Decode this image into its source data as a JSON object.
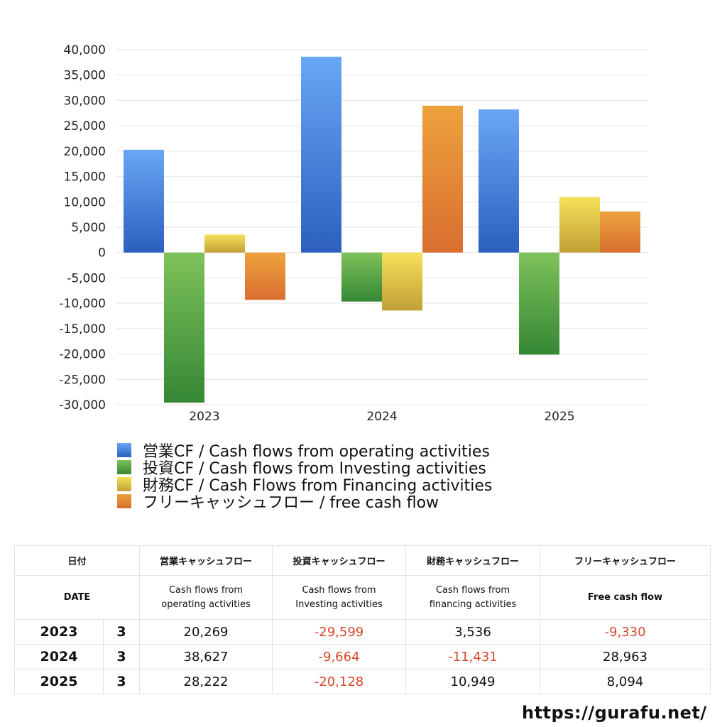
{
  "chart_data": {
    "type": "bar",
    "categories": [
      "2023",
      "2024",
      "2025"
    ],
    "series": [
      {
        "name": "営業CF / Cash flows from operating activities",
        "values": [
          20269,
          38627,
          28222
        ]
      },
      {
        "name": "投資CF / Cash flows from Investing activities",
        "values": [
          -29599,
          -9664,
          -20128
        ]
      },
      {
        "name": "財務CF / Cash Flows from Financing activities",
        "values": [
          3536,
          -11431,
          10949
        ]
      },
      {
        "name": "フリーキャッシュフロー / free cash flow",
        "values": [
          -9330,
          28963,
          8094
        ]
      }
    ],
    "ylim": [
      -30000,
      40000
    ],
    "yticks": [
      "40,000",
      "35,000",
      "30,000",
      "25,000",
      "20,000",
      "15,000",
      "10,000",
      "5,000",
      "0",
      "-5,000",
      "-10,000",
      "-15,000",
      "-20,000",
      "-25,000",
      "-30,000"
    ],
    "grid": true,
    "legend": "bottom-left",
    "colors": [
      {
        "top": "#69a7f5",
        "bottom": "#2c5fbf"
      },
      {
        "top": "#7ec25a",
        "bottom": "#358735"
      },
      {
        "top": "#f5e05a",
        "bottom": "#c2a035"
      },
      {
        "top": "#eda23d",
        "bottom": "#d96e30"
      }
    ]
  },
  "table": {
    "header_jp": {
      "date": "日付",
      "operating": "営業キャッシュフロー",
      "investing": "投資キャッシュフロー",
      "financing": "財務キャッシュフロー",
      "free": "フリーキャッシュフロー"
    },
    "header_en": {
      "date": "DATE",
      "operating_1": "Cash flows from",
      "operating_2": "operating activities",
      "investing_1": "Cash flows from",
      "investing_2": "Investing activities",
      "financing_1": "Cash flows from",
      "financing_2": "financing activities",
      "free": "Free cash flow"
    },
    "rows": [
      {
        "year": "2023",
        "month": "3",
        "operating": "20,269",
        "investing": "-29,599",
        "financing": "3,536",
        "free": "-9,330"
      },
      {
        "year": "2024",
        "month": "3",
        "operating": "38,627",
        "investing": "-9,664",
        "financing": "-11,431",
        "free": "28,963"
      },
      {
        "year": "2025",
        "month": "3",
        "operating": "28,222",
        "investing": "-20,128",
        "financing": "10,949",
        "free": "8,094"
      }
    ],
    "negative_color": "#d9472b"
  },
  "site_url": "https://gurafu.net/"
}
